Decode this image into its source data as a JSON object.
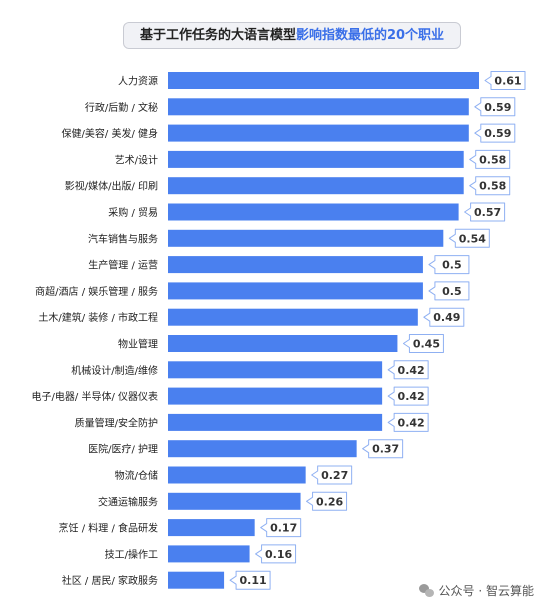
{
  "title": {
    "part1": "基于工作任务的大语言模型",
    "part2": "影响指数最低的20个职业"
  },
  "chart_data": {
    "type": "bar",
    "orientation": "horizontal",
    "categories": [
      "人力资源",
      "行政/后勤 / 文秘",
      "保健/美容/ 美发/ 健身",
      "艺术/设计",
      "影视/媒体/出版/ 印刷",
      "采购 / 贸易",
      "汽车销售与服务",
      "生产管理 / 运营",
      "商超/酒店 / 娱乐管理 / 服务",
      "土木/建筑/ 装修 / 市政工程",
      "物业管理",
      "机械设计/制造/维修",
      "电子/电器/ 半导体/ 仪器仪表",
      "质量管理/安全防护",
      "医院/医疗/ 护理",
      "物流/仓储",
      "交通运输服务",
      "烹饪 / 料理 / 食品研发",
      "技工/操作工",
      "社区 / 居民/ 家政服务"
    ],
    "values": [
      0.61,
      0.59,
      0.59,
      0.58,
      0.58,
      0.57,
      0.54,
      0.5,
      0.5,
      0.49,
      0.45,
      0.42,
      0.42,
      0.42,
      0.37,
      0.27,
      0.26,
      0.17,
      0.16,
      0.11
    ],
    "data_labels": [
      "0.61",
      "0.59",
      "0.59",
      "0.58",
      "0.58",
      "0.57",
      "0.54",
      "0.5",
      "0.5",
      "0.49",
      "0.45",
      "0.42",
      "0.42",
      "0.42",
      "0.37",
      "0.27",
      "0.26",
      "0.17",
      "0.16",
      "0.11"
    ],
    "xlim": [
      0,
      0.61
    ],
    "grid": false,
    "bar_color": "#4a80ef"
  },
  "watermark": "公众号 · 智云算能"
}
